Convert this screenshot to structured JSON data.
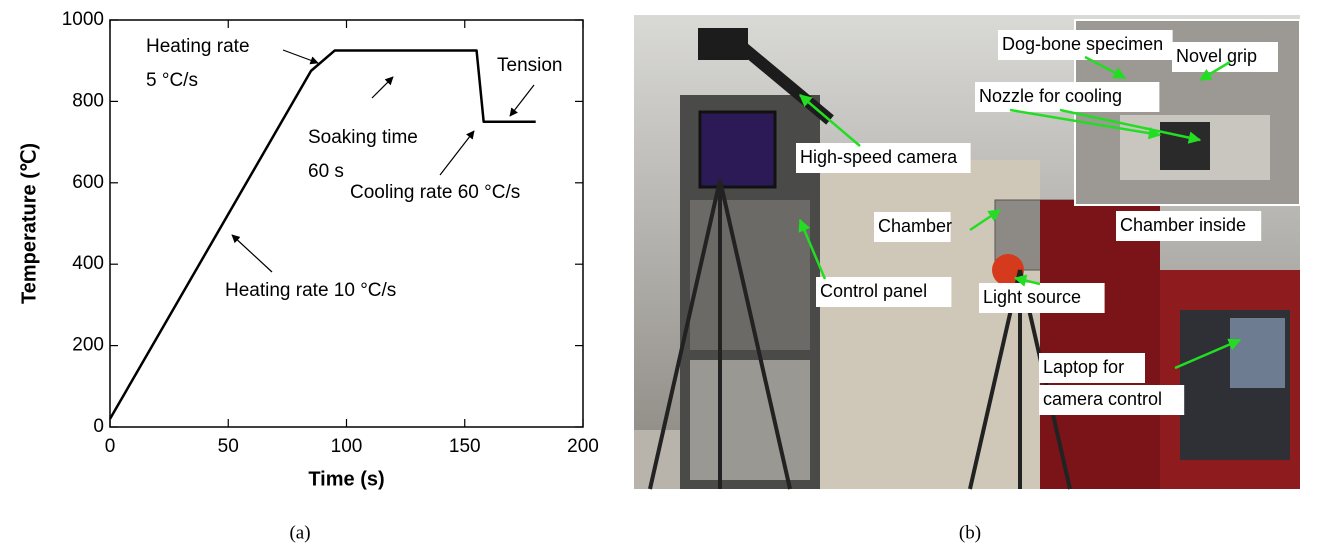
{
  "chart_data": {
    "type": "line",
    "xlabel": "Time (s)",
    "ylabel": "Temperature (℃)",
    "x": [
      0,
      85,
      95,
      155,
      158,
      180
    ],
    "series": [
      {
        "color": "#000000",
        "values": [
          20,
          875,
          925,
          925,
          750,
          750
        ]
      }
    ],
    "xlim": [
      0,
      200
    ],
    "ylim": [
      0,
      1000
    ],
    "xticks": [
      0,
      50,
      100,
      150,
      200
    ],
    "yticks": [
      0,
      200,
      400,
      600,
      800,
      1000
    ],
    "annotations": [
      "Heating rate",
      "5 °C/s",
      "Soaking time",
      "60 s",
      "Cooling rate 60 °C/s",
      "Tension",
      "Heating rate 10 °C/s"
    ],
    "caption": "(a)"
  },
  "photo": {
    "labels": [
      "Dog-bone specimen",
      "Novel grip",
      "Nozzle for cooling",
      "High-speed camera",
      "Chamber",
      "Chamber inside",
      "Control panel",
      "Light source",
      "Laptop for",
      "camera control"
    ],
    "caption": "(b)"
  }
}
